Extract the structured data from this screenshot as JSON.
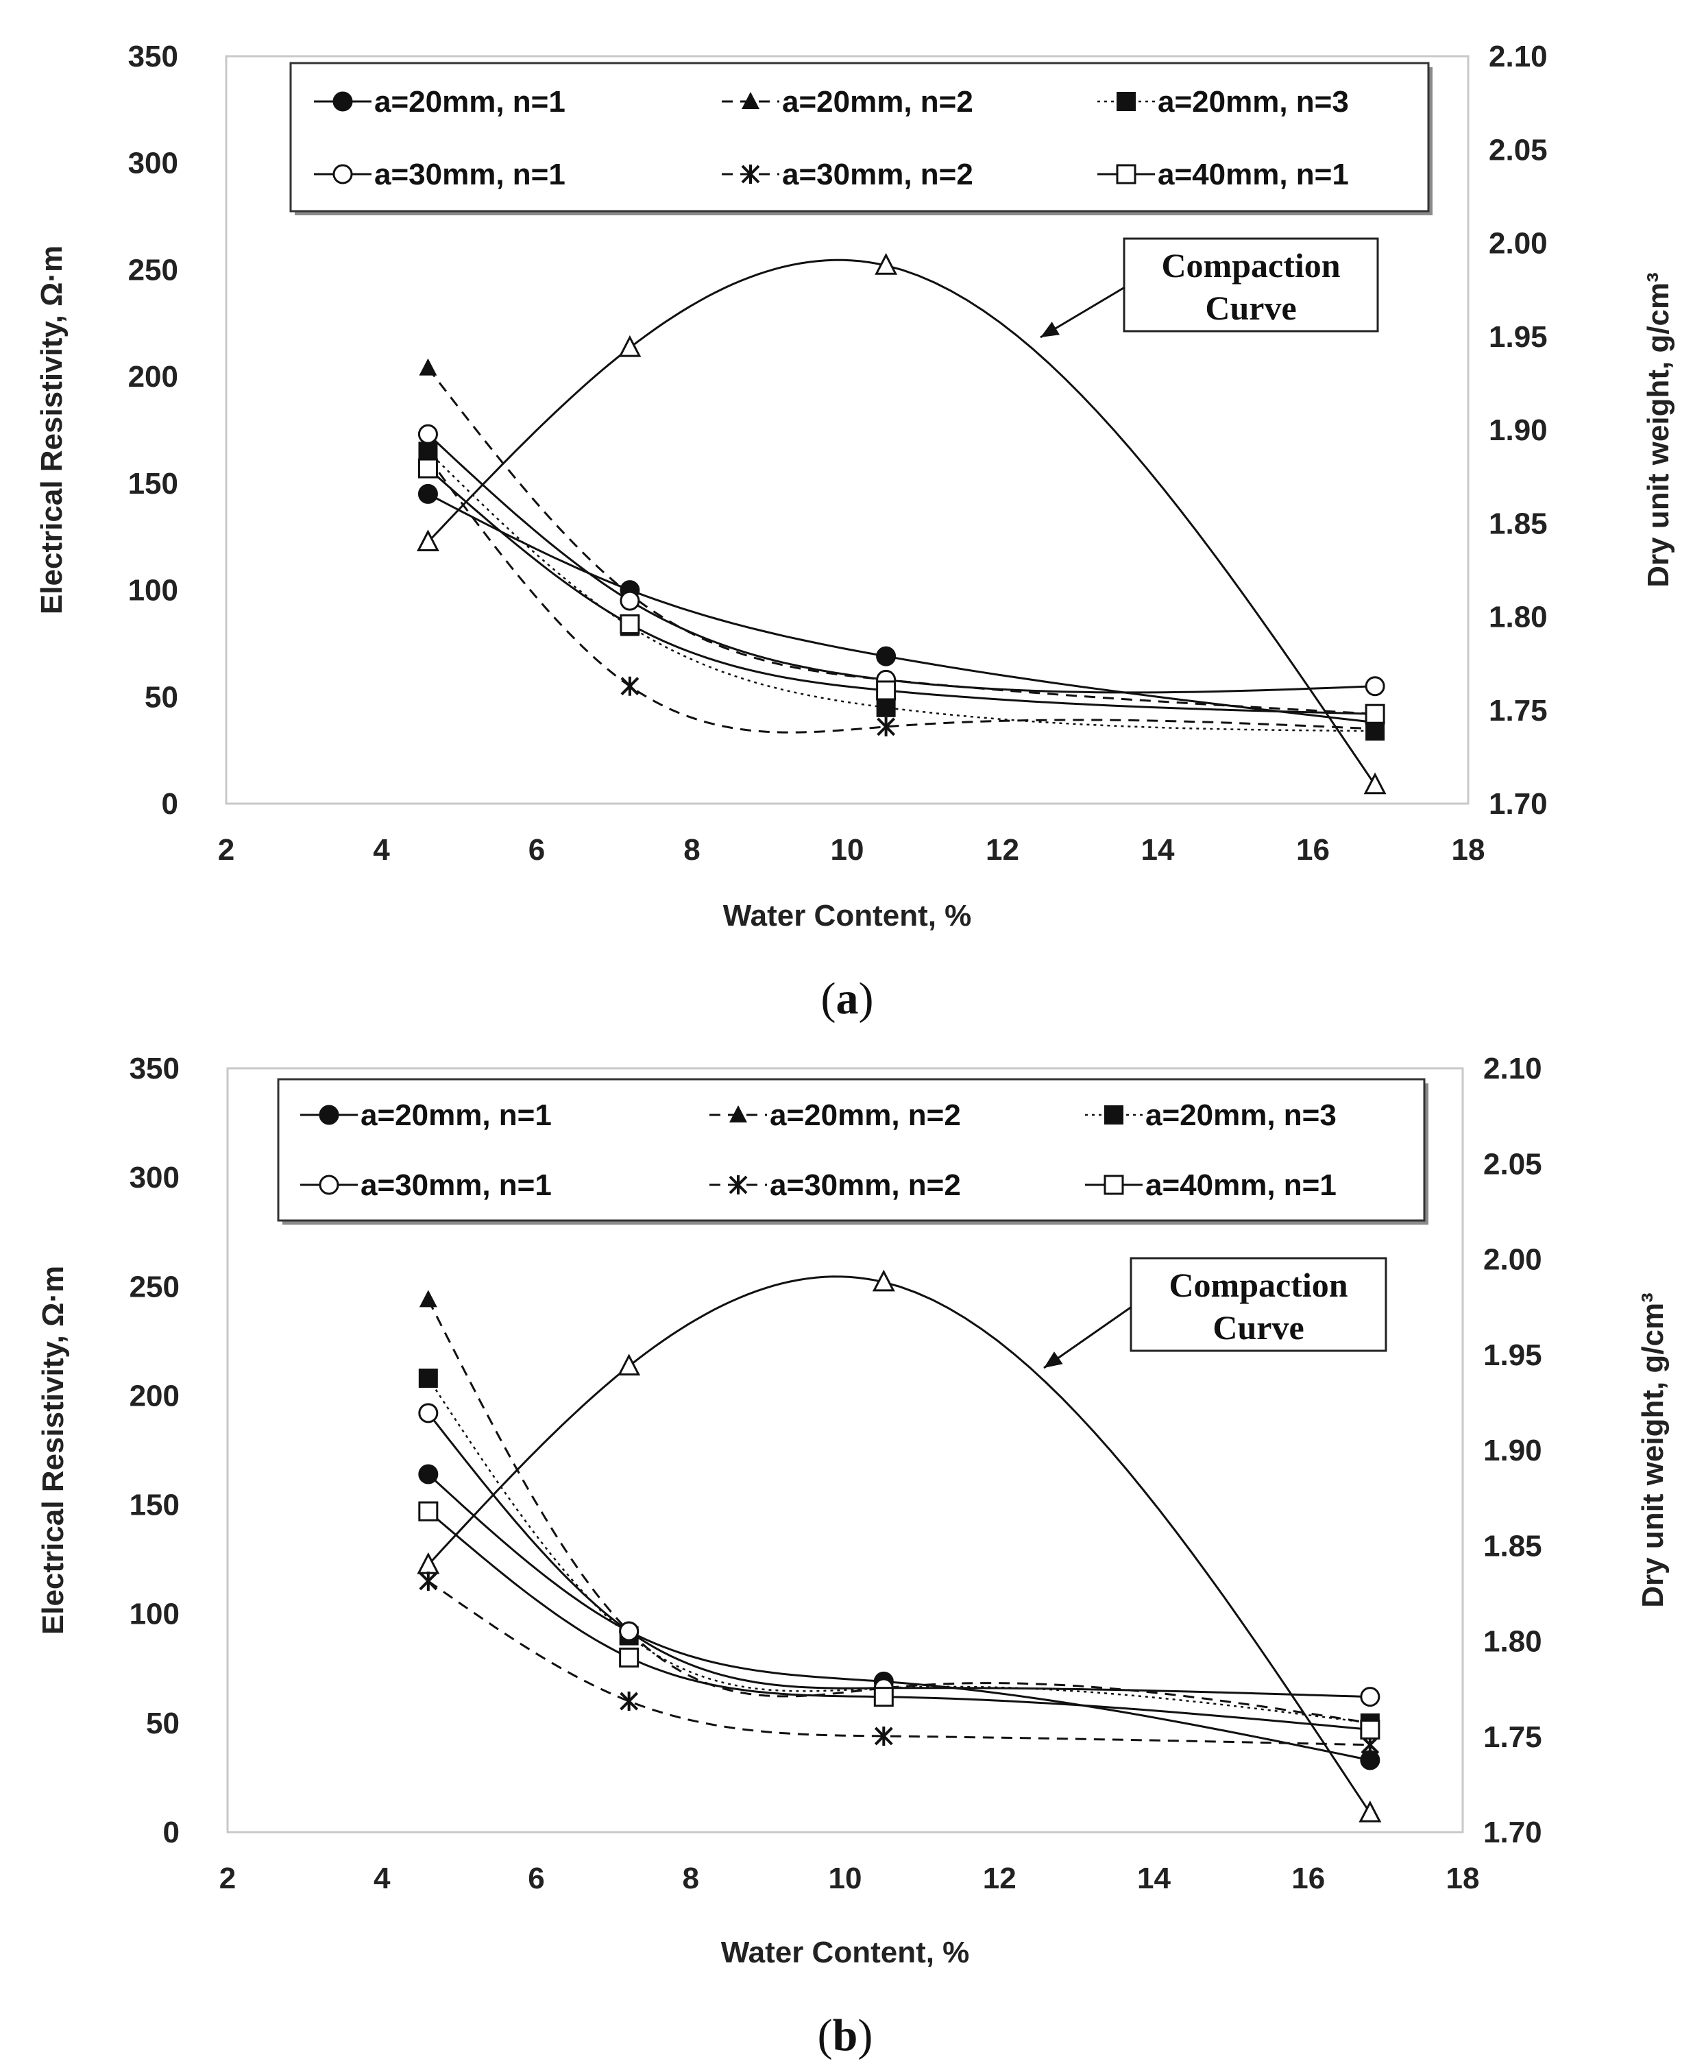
{
  "chart_data": [
    {
      "type": "line",
      "panel_label_open": "(",
      "panel_label_letter": "a",
      "panel_label_close": ")",
      "xlabel": "Water Content, %",
      "ylabel": "Electrical Resistivity, Ω·m",
      "y2label": "Dry unit weight, g/cm³",
      "xlim": [
        2,
        18
      ],
      "ylim": [
        0,
        350
      ],
      "y2lim": [
        1.7,
        2.1
      ],
      "xticks": [
        "2",
        "4",
        "6",
        "8",
        "10",
        "12",
        "14",
        "16",
        "18"
      ],
      "yticks": [
        "0",
        "50",
        "100",
        "150",
        "200",
        "250",
        "300",
        "350"
      ],
      "y2ticks": [
        "1.70",
        "1.75",
        "1.80",
        "1.85",
        "1.90",
        "1.95",
        "2.00",
        "2.05",
        "2.10"
      ],
      "x": [
        4.6,
        7.2,
        10.5,
        16.8
      ],
      "series": [
        {
          "name": "a=20mm, n=1",
          "marker": "circle-filled",
          "dash": "solid",
          "values": [
            145,
            100,
            69,
            38
          ]
        },
        {
          "name": "a=20mm, n=2",
          "marker": "triangle-filled",
          "dash": "dashed",
          "values": [
            204,
            98,
            58,
            42
          ]
        },
        {
          "name": "a=20mm, n=3",
          "marker": "square-filled",
          "dash": "dotted",
          "values": [
            165,
            83,
            45,
            34
          ]
        },
        {
          "name": "a=30mm, n=1",
          "marker": "circle-open",
          "dash": "solid",
          "values": [
            173,
            95,
            58,
            55
          ]
        },
        {
          "name": "a=30mm, n=2",
          "marker": "star",
          "dash": "dashed",
          "values": [
            162,
            55,
            36,
            35
          ]
        },
        {
          "name": "a=40mm, n=1",
          "marker": "square-open",
          "dash": "solid",
          "values": [
            157,
            84,
            53,
            42
          ]
        }
      ],
      "compaction_curve": {
        "label_line1": "Compaction",
        "label_line2": "Curve",
        "x": [
          4.6,
          7.2,
          10.5,
          16.8
        ],
        "values": [
          1.84,
          1.944,
          1.988,
          1.71
        ]
      }
    },
    {
      "type": "line",
      "panel_label_open": "(",
      "panel_label_letter": "b",
      "panel_label_close": ")",
      "xlabel": "Water Content, %",
      "ylabel": "Electrical Resistivity, Ω·m",
      "y2label": "Dry unit weight, g/cm³",
      "xlim": [
        2,
        18
      ],
      "ylim": [
        0,
        350
      ],
      "y2lim": [
        1.7,
        2.1
      ],
      "xticks": [
        "2",
        "4",
        "6",
        "8",
        "10",
        "12",
        "14",
        "16",
        "18"
      ],
      "yticks": [
        "0",
        "50",
        "100",
        "150",
        "200",
        "250",
        "300",
        "350"
      ],
      "y2ticks": [
        "1.70",
        "1.75",
        "1.80",
        "1.85",
        "1.90",
        "1.95",
        "2.00",
        "2.05",
        "2.10"
      ],
      "x": [
        4.6,
        7.2,
        10.5,
        16.8
      ],
      "series": [
        {
          "name": "a=20mm, n=1",
          "marker": "circle-filled",
          "dash": "solid",
          "values": [
            164,
            92,
            69,
            33
          ]
        },
        {
          "name": "a=20mm, n=2",
          "marker": "triangle-filled",
          "dash": "dashed",
          "values": [
            244,
            92,
            66,
            50
          ]
        },
        {
          "name": "a=20mm, n=3",
          "marker": "square-filled",
          "dash": "dotted",
          "values": [
            208,
            90,
            66,
            50
          ]
        },
        {
          "name": "a=30mm, n=1",
          "marker": "circle-open",
          "dash": "solid",
          "values": [
            192,
            92,
            66,
            62
          ]
        },
        {
          "name": "a=30mm, n=2",
          "marker": "star",
          "dash": "dashed",
          "values": [
            115,
            60,
            44,
            40
          ]
        },
        {
          "name": "a=40mm, n=1",
          "marker": "square-open",
          "dash": "solid",
          "values": [
            147,
            80,
            62,
            47
          ]
        }
      ],
      "compaction_curve": {
        "label_line1": "Compaction",
        "label_line2": "Curve",
        "x": [
          4.6,
          7.2,
          10.5,
          16.8
        ],
        "values": [
          1.84,
          1.944,
          1.988,
          1.71
        ]
      }
    }
  ]
}
